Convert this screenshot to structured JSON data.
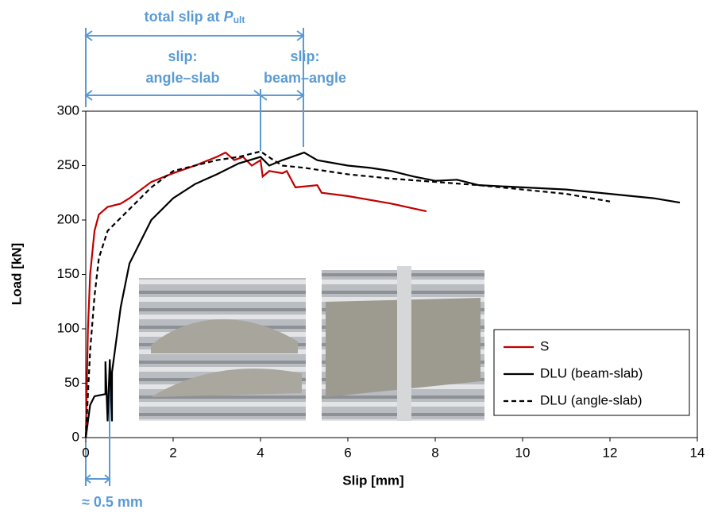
{
  "chart_data": {
    "type": "line",
    "xlabel": "Slip [mm]",
    "ylabel": "Load [kN]",
    "xlim": [
      0,
      14
    ],
    "xticks": [
      0,
      2,
      4,
      6,
      8,
      10,
      12,
      14
    ],
    "ylim": [
      0,
      300
    ],
    "yticks": [
      0,
      50,
      100,
      150,
      200,
      250,
      300
    ],
    "grid": false,
    "legend": "lower right",
    "annotations": {
      "total": {
        "text": "total slip at",
        "symbol": "P",
        "subscript": "ult"
      },
      "angle_slab": [
        "slip:",
        "angle–slab"
      ],
      "beam_angle": [
        "slip:",
        "beam–angle"
      ],
      "initial": "≈ 0.5 mm"
    },
    "series": [
      {
        "name": "S",
        "color": "#c00000",
        "line_style": "solid",
        "x": [
          0,
          0.05,
          0.1,
          0.2,
          0.3,
          0.5,
          0.8,
          1,
          1.5,
          2,
          2.5,
          3,
          3.2,
          3.4,
          3.6,
          3.8,
          4,
          4.05,
          4.2,
          4.5,
          4.6,
          4.8,
          5.3,
          5.4,
          6,
          7,
          7.8
        ],
        "values": [
          0,
          100,
          150,
          190,
          205,
          212,
          215,
          220,
          235,
          243,
          250,
          258,
          262,
          255,
          258,
          250,
          255,
          240,
          245,
          243,
          245,
          230,
          232,
          225,
          222,
          215,
          208
        ]
      },
      {
        "name": "DLU (beam-slab)",
        "color": "#000000",
        "line_style": "solid",
        "x": [
          0,
          0.1,
          0.2,
          0.45,
          0.45,
          0.5,
          0.55,
          0.6,
          0.6,
          0.8,
          1,
          1.5,
          2,
          2.5,
          3,
          3.5,
          4,
          4.2,
          4.5,
          5,
          5.3,
          6,
          6.5,
          7,
          7.5,
          8,
          8.5,
          9,
          10,
          11,
          12,
          13,
          13.6
        ],
        "values": [
          0,
          30,
          38,
          40,
          70,
          15,
          72,
          15,
          60,
          120,
          160,
          200,
          220,
          233,
          242,
          252,
          258,
          250,
          255,
          262,
          255,
          250,
          248,
          245,
          240,
          236,
          237,
          232,
          230,
          228,
          224,
          220,
          216
        ]
      },
      {
        "name": "DLU (angle-slab)",
        "color": "#000000",
        "line_style": "dashed",
        "x": [
          0,
          0.1,
          0.2,
          0.3,
          0.5,
          1,
          1.5,
          2,
          2.5,
          3,
          3.5,
          4,
          4.3,
          4.5,
          5,
          6,
          7,
          8,
          9,
          10,
          11,
          12
        ],
        "values": [
          0,
          80,
          130,
          165,
          190,
          210,
          230,
          245,
          250,
          255,
          258,
          263,
          255,
          250,
          248,
          242,
          238,
          235,
          232,
          228,
          224,
          217
        ]
      }
    ]
  }
}
